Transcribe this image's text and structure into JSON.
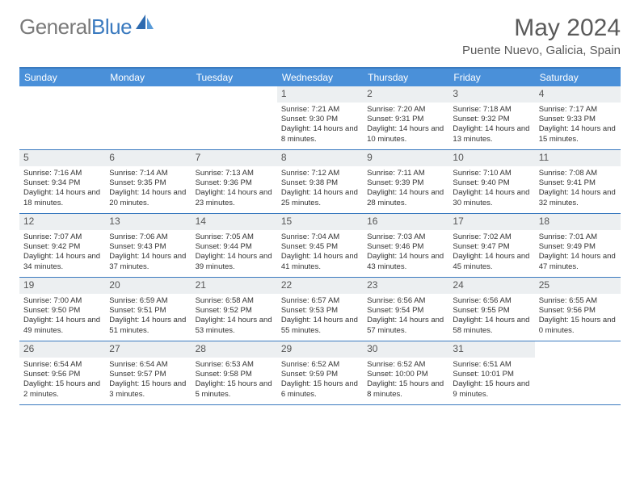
{
  "logo": {
    "text1": "General",
    "text2": "Blue"
  },
  "title": "May 2024",
  "subtitle": "Puente Nuevo, Galicia, Spain",
  "colors": {
    "header_bg": "#4a90d9",
    "header_border": "#3a7abf",
    "daynum_bg": "#eceff1",
    "text": "#333333",
    "logo_gray": "#7a7a7a",
    "logo_blue": "#3a7abf"
  },
  "day_names": [
    "Sunday",
    "Monday",
    "Tuesday",
    "Wednesday",
    "Thursday",
    "Friday",
    "Saturday"
  ],
  "weeks": [
    [
      null,
      null,
      null,
      {
        "n": "1",
        "sr": "7:21 AM",
        "ss": "9:30 PM",
        "dl": "14 hours and 8 minutes."
      },
      {
        "n": "2",
        "sr": "7:20 AM",
        "ss": "9:31 PM",
        "dl": "14 hours and 10 minutes."
      },
      {
        "n": "3",
        "sr": "7:18 AM",
        "ss": "9:32 PM",
        "dl": "14 hours and 13 minutes."
      },
      {
        "n": "4",
        "sr": "7:17 AM",
        "ss": "9:33 PM",
        "dl": "14 hours and 15 minutes."
      }
    ],
    [
      {
        "n": "5",
        "sr": "7:16 AM",
        "ss": "9:34 PM",
        "dl": "14 hours and 18 minutes."
      },
      {
        "n": "6",
        "sr": "7:14 AM",
        "ss": "9:35 PM",
        "dl": "14 hours and 20 minutes."
      },
      {
        "n": "7",
        "sr": "7:13 AM",
        "ss": "9:36 PM",
        "dl": "14 hours and 23 minutes."
      },
      {
        "n": "8",
        "sr": "7:12 AM",
        "ss": "9:38 PM",
        "dl": "14 hours and 25 minutes."
      },
      {
        "n": "9",
        "sr": "7:11 AM",
        "ss": "9:39 PM",
        "dl": "14 hours and 28 minutes."
      },
      {
        "n": "10",
        "sr": "7:10 AM",
        "ss": "9:40 PM",
        "dl": "14 hours and 30 minutes."
      },
      {
        "n": "11",
        "sr": "7:08 AM",
        "ss": "9:41 PM",
        "dl": "14 hours and 32 minutes."
      }
    ],
    [
      {
        "n": "12",
        "sr": "7:07 AM",
        "ss": "9:42 PM",
        "dl": "14 hours and 34 minutes."
      },
      {
        "n": "13",
        "sr": "7:06 AM",
        "ss": "9:43 PM",
        "dl": "14 hours and 37 minutes."
      },
      {
        "n": "14",
        "sr": "7:05 AM",
        "ss": "9:44 PM",
        "dl": "14 hours and 39 minutes."
      },
      {
        "n": "15",
        "sr": "7:04 AM",
        "ss": "9:45 PM",
        "dl": "14 hours and 41 minutes."
      },
      {
        "n": "16",
        "sr": "7:03 AM",
        "ss": "9:46 PM",
        "dl": "14 hours and 43 minutes."
      },
      {
        "n": "17",
        "sr": "7:02 AM",
        "ss": "9:47 PM",
        "dl": "14 hours and 45 minutes."
      },
      {
        "n": "18",
        "sr": "7:01 AM",
        "ss": "9:49 PM",
        "dl": "14 hours and 47 minutes."
      }
    ],
    [
      {
        "n": "19",
        "sr": "7:00 AM",
        "ss": "9:50 PM",
        "dl": "14 hours and 49 minutes."
      },
      {
        "n": "20",
        "sr": "6:59 AM",
        "ss": "9:51 PM",
        "dl": "14 hours and 51 minutes."
      },
      {
        "n": "21",
        "sr": "6:58 AM",
        "ss": "9:52 PM",
        "dl": "14 hours and 53 minutes."
      },
      {
        "n": "22",
        "sr": "6:57 AM",
        "ss": "9:53 PM",
        "dl": "14 hours and 55 minutes."
      },
      {
        "n": "23",
        "sr": "6:56 AM",
        "ss": "9:54 PM",
        "dl": "14 hours and 57 minutes."
      },
      {
        "n": "24",
        "sr": "6:56 AM",
        "ss": "9:55 PM",
        "dl": "14 hours and 58 minutes."
      },
      {
        "n": "25",
        "sr": "6:55 AM",
        "ss": "9:56 PM",
        "dl": "15 hours and 0 minutes."
      }
    ],
    [
      {
        "n": "26",
        "sr": "6:54 AM",
        "ss": "9:56 PM",
        "dl": "15 hours and 2 minutes."
      },
      {
        "n": "27",
        "sr": "6:54 AM",
        "ss": "9:57 PM",
        "dl": "15 hours and 3 minutes."
      },
      {
        "n": "28",
        "sr": "6:53 AM",
        "ss": "9:58 PM",
        "dl": "15 hours and 5 minutes."
      },
      {
        "n": "29",
        "sr": "6:52 AM",
        "ss": "9:59 PM",
        "dl": "15 hours and 6 minutes."
      },
      {
        "n": "30",
        "sr": "6:52 AM",
        "ss": "10:00 PM",
        "dl": "15 hours and 8 minutes."
      },
      {
        "n": "31",
        "sr": "6:51 AM",
        "ss": "10:01 PM",
        "dl": "15 hours and 9 minutes."
      },
      null
    ]
  ],
  "labels": {
    "sunrise": "Sunrise: ",
    "sunset": "Sunset: ",
    "daylight": "Daylight: "
  }
}
